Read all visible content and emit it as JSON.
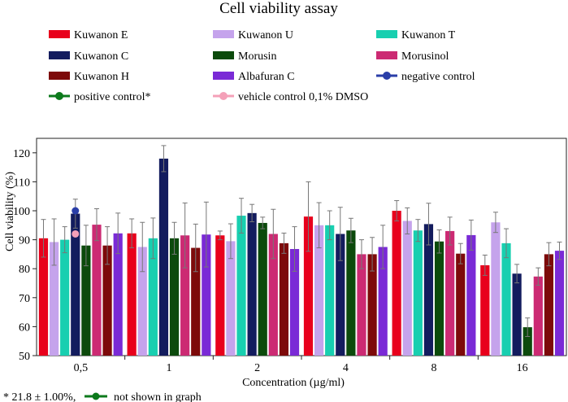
{
  "chart_data": {
    "type": "bar",
    "title": "Cell viability assay",
    "xlabel": "Concentration (µg/ml)",
    "ylabel": "Cell viability (%)",
    "ylim": [
      50,
      125
    ],
    "yticks": [
      50,
      60,
      70,
      80,
      90,
      100,
      110,
      120
    ],
    "categories": [
      "0,5",
      "1",
      "2",
      "4",
      "8",
      "16"
    ],
    "series": [
      {
        "name": "Kuwanon E",
        "color": "#e8001c",
        "values": [
          90.5,
          92.2,
          91.5,
          98.0,
          100.0,
          81.2
        ],
        "errors": [
          6.5,
          5.0,
          1.5,
          12.0,
          3.5,
          3.5
        ]
      },
      {
        "name": "Kuwanon U",
        "color": "#c5a3ec",
        "values": [
          89.2,
          87.5,
          89.5,
          95.0,
          96.5,
          96.0
        ],
        "errors": [
          8.0,
          8.5,
          6.0,
          7.8,
          4.5,
          3.5
        ]
      },
      {
        "name": "Kuwanon T",
        "color": "#18cfb0",
        "values": [
          90.0,
          90.5,
          98.3,
          95.0,
          93.2,
          88.8
        ],
        "errors": [
          4.5,
          7.0,
          6.0,
          5.0,
          3.8,
          5.0
        ]
      },
      {
        "name": "Kuwanon C",
        "color": "#131c5e",
        "values": [
          99.0,
          118.0,
          99.2,
          92.0,
          95.4,
          78.3
        ],
        "errors": [
          5.0,
          4.5,
          3.0,
          9.2,
          7.2,
          3.2
        ]
      },
      {
        "name": "Morusin",
        "color": "#0c4a0c",
        "values": [
          88.0,
          90.5,
          95.8,
          93.2,
          89.4,
          59.8
        ],
        "errors": [
          7.0,
          5.5,
          2.0,
          4.2,
          4.0,
          3.2
        ]
      },
      {
        "name": "Morusinol",
        "color": "#cc2a73",
        "values": [
          95.2,
          91.5,
          92.0,
          85.0,
          93.0,
          77.3
        ],
        "errors": [
          5.5,
          11.2,
          8.5,
          5.0,
          4.8,
          3.0
        ]
      },
      {
        "name": "Kuwanon H",
        "color": "#7d0a0a",
        "values": [
          88.0,
          87.2,
          88.8,
          85.0,
          85.2,
          85.0
        ],
        "errors": [
          6.5,
          8.2,
          3.5,
          5.8,
          3.5,
          4.0
        ]
      },
      {
        "name": "Albafuran C",
        "color": "#7a2ad6",
        "values": [
          92.2,
          91.8,
          86.8,
          87.5,
          91.6,
          86.2
        ],
        "errors": [
          7.0,
          11.2,
          7.7,
          7.5,
          5.2,
          3.0
        ]
      }
    ],
    "controls": [
      {
        "name": "negative control",
        "color": "#2a3ea8",
        "value": 100.0
      },
      {
        "name": "positive control*",
        "color": "#0c7a1c",
        "value": 21.8
      },
      {
        "name": "vehicle control 0,1% DMSO",
        "color": "#f4a0b8",
        "value": 92.0
      }
    ],
    "legend": [
      "Kuwanon E",
      "Kuwanon U",
      "Kuwanon T",
      "Kuwanon C",
      "Morusin",
      "Morusinol",
      "Kuwanon H",
      "Albafuran C",
      "negative control",
      "positive control*",
      "vehicle control 0,1% DMSO"
    ],
    "footnote": {
      "prefix": "* 21.8 ± 1.00%,",
      "suffix": "not shown in graph",
      "marker_color": "#0c7a1c"
    }
  }
}
